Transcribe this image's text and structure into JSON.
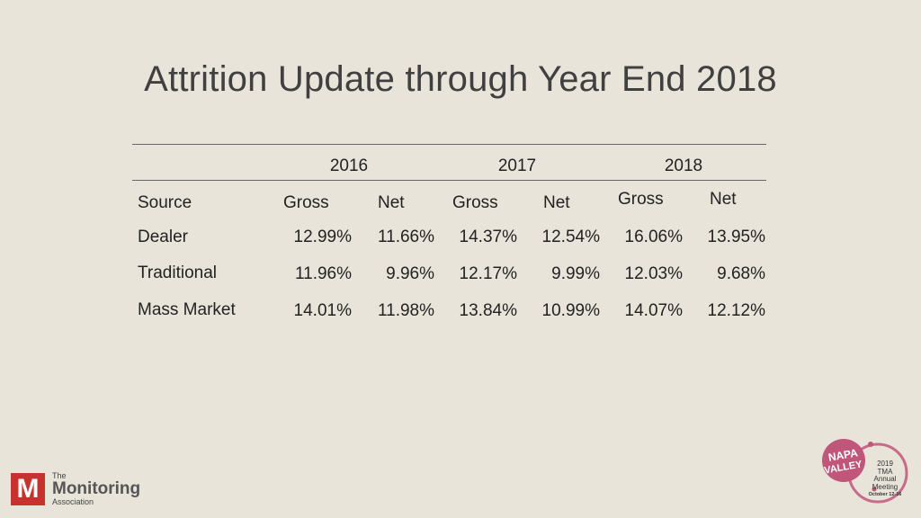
{
  "title": "Attrition Update through Year End 2018",
  "table": {
    "years": [
      "2016",
      "2017",
      "2018"
    ],
    "source_header": "Source",
    "sub_headers": [
      "Gross",
      "Net",
      "Gross",
      "Net",
      "Gross",
      "Net"
    ],
    "rows": [
      {
        "label": "Dealer",
        "values": [
          "12.99%",
          "11.66%",
          "14.37%",
          "12.54%",
          "16.06%",
          "13.95%"
        ]
      },
      {
        "label": "Traditional",
        "values": [
          "11.96%",
          "9.96%",
          "12.17%",
          "9.99%",
          "12.03%",
          "9.68%"
        ]
      },
      {
        "label": "Mass Market",
        "values": [
          "14.01%",
          "11.98%",
          "13.84%",
          "10.99%",
          "14.07%",
          "12.12%"
        ]
      }
    ]
  },
  "footer": {
    "tma_logo": {
      "mark": "M",
      "line1": "The",
      "line2": "Monitoring",
      "line3": "Association",
      "color": "#c7312e"
    },
    "event_logo": {
      "word1": "NAPA",
      "word2": "VALLEY",
      "lines": [
        "2019",
        "TMA",
        "Annual",
        "Meeting",
        "October 12-16"
      ],
      "color": "#c0567a"
    }
  }
}
